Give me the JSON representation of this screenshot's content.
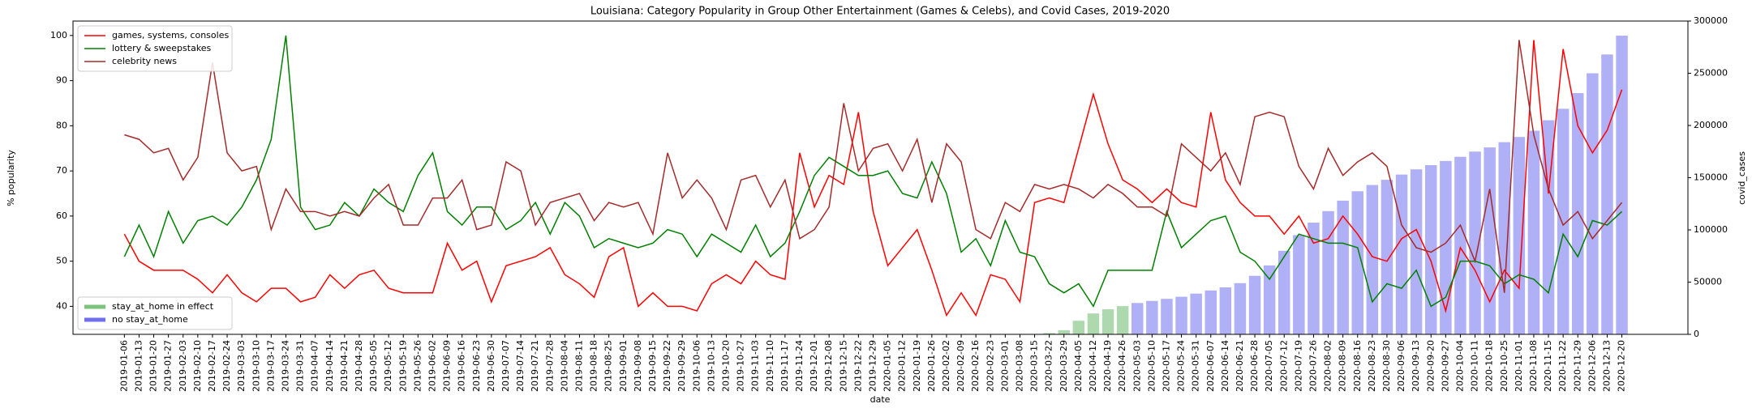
{
  "chart_data": {
    "type": "line",
    "title": "Louisiana: Category Popularity in Group Other Entertainment (Games & Celebs), and Covid Cases, 2019-2020",
    "x_label": "date",
    "y_label": "% popularity",
    "y2_label": "covid_cases",
    "categories": [
      "2019-01-06",
      "2019-01-13",
      "2019-01-20",
      "2019-01-27",
      "2019-02-03",
      "2019-02-10",
      "2019-02-17",
      "2019-02-24",
      "2019-03-03",
      "2019-03-10",
      "2019-03-17",
      "2019-03-24",
      "2019-03-31",
      "2019-04-07",
      "2019-04-14",
      "2019-04-21",
      "2019-04-28",
      "2019-05-05",
      "2019-05-12",
      "2019-05-19",
      "2019-05-26",
      "2019-06-02",
      "2019-06-09",
      "2019-06-16",
      "2019-06-23",
      "2019-06-30",
      "2019-07-07",
      "2019-07-14",
      "2019-07-21",
      "2019-07-28",
      "2019-08-04",
      "2019-08-11",
      "2019-08-18",
      "2019-08-25",
      "2019-09-01",
      "2019-09-08",
      "2019-09-15",
      "2019-09-22",
      "2019-09-29",
      "2019-10-06",
      "2019-10-13",
      "2019-10-20",
      "2019-10-27",
      "2019-11-03",
      "2019-11-10",
      "2019-11-17",
      "2019-11-24",
      "2019-12-01",
      "2019-12-08",
      "2019-12-15",
      "2019-12-22",
      "2019-12-29",
      "2020-01-05",
      "2020-01-12",
      "2020-01-19",
      "2020-01-26",
      "2020-02-02",
      "2020-02-09",
      "2020-02-16",
      "2020-02-23",
      "2020-03-01",
      "2020-03-08",
      "2020-03-15",
      "2020-03-22",
      "2020-03-29",
      "2020-04-05",
      "2020-04-12",
      "2020-04-19",
      "2020-04-26",
      "2020-05-03",
      "2020-05-10",
      "2020-05-17",
      "2020-05-24",
      "2020-05-31",
      "2020-06-07",
      "2020-06-14",
      "2020-06-21",
      "2020-06-28",
      "2020-07-05",
      "2020-07-12",
      "2020-07-19",
      "2020-07-26",
      "2020-08-02",
      "2020-08-09",
      "2020-08-16",
      "2020-08-23",
      "2020-08-30",
      "2020-09-06",
      "2020-09-13",
      "2020-09-20",
      "2020-09-27",
      "2020-10-04",
      "2020-10-11",
      "2020-10-18",
      "2020-10-25",
      "2020-11-01",
      "2020-11-08",
      "2020-11-15",
      "2020-11-22",
      "2020-11-29",
      "2020-12-06",
      "2020-12-13",
      "2020-12-20"
    ],
    "series": [
      {
        "name": "games, systems, consoles",
        "type": "line",
        "color": "#ff0000",
        "values": [
          56,
          50,
          48,
          48,
          48,
          46,
          43,
          47,
          43,
          41,
          44,
          44,
          41,
          42,
          47,
          44,
          47,
          48,
          44,
          43,
          43,
          43,
          54,
          48,
          50,
          41,
          49,
          50,
          51,
          53,
          47,
          45,
          42,
          51,
          53,
          40,
          43,
          40,
          40,
          39,
          45,
          47,
          45,
          50,
          47,
          46,
          74,
          62,
          69,
          67,
          83,
          61,
          49,
          53,
          57,
          48,
          38,
          43,
          38,
          47,
          46,
          41,
          63,
          64,
          63,
          75,
          87,
          76,
          68,
          66,
          63,
          66,
          63,
          62,
          83,
          68,
          63,
          60,
          60,
          56,
          60,
          54,
          55,
          60,
          56,
          51,
          50,
          55,
          57,
          50,
          39,
          53,
          48,
          41,
          48,
          44,
          99,
          65,
          97,
          80,
          74,
          79,
          88
        ]
      },
      {
        "name": "lottery & sweepstakes",
        "type": "line",
        "color": "#008000",
        "values": [
          51,
          58,
          51,
          61,
          54,
          59,
          60,
          58,
          62,
          68,
          77,
          100,
          62,
          57,
          58,
          63,
          60,
          66,
          63,
          61,
          69,
          74,
          61,
          58,
          62,
          62,
          57,
          59,
          63,
          56,
          63,
          60,
          53,
          55,
          54,
          53,
          54,
          57,
          56,
          51,
          56,
          54,
          52,
          58,
          51,
          54,
          61,
          69,
          73,
          71,
          69,
          69,
          70,
          65,
          64,
          72,
          65,
          52,
          55,
          49,
          59,
          52,
          51,
          45,
          43,
          45,
          40,
          48,
          48,
          48,
          48,
          61,
          53,
          56,
          59,
          60,
          52,
          50,
          46,
          51,
          56,
          55,
          54,
          54,
          53,
          41,
          45,
          44,
          48,
          40,
          42,
          50,
          50,
          49,
          45,
          47,
          46,
          43,
          56,
          51,
          59,
          58,
          61
        ]
      },
      {
        "name": "celebrity news",
        "type": "line",
        "color": "#a52a2a",
        "values": [
          78,
          77,
          74,
          75,
          68,
          73,
          94,
          74,
          70,
          71,
          57,
          66,
          61,
          61,
          60,
          61,
          60,
          64,
          67,
          58,
          58,
          64,
          64,
          68,
          57,
          58,
          72,
          70,
          58,
          63,
          64,
          65,
          59,
          63,
          62,
          63,
          56,
          74,
          64,
          68,
          64,
          57,
          68,
          69,
          62,
          68,
          55,
          57,
          62,
          85,
          70,
          75,
          76,
          70,
          77,
          63,
          76,
          72,
          57,
          55,
          63,
          61,
          67,
          66,
          67,
          66,
          64,
          67,
          65,
          62,
          62,
          60,
          76,
          73,
          70,
          74,
          67,
          82,
          83,
          82,
          71,
          66,
          75,
          69,
          72,
          74,
          71,
          58,
          53,
          52,
          54,
          58,
          50,
          66,
          43,
          99,
          78,
          66,
          58,
          61,
          55,
          59,
          63
        ]
      },
      {
        "name": "stay_at_home in effect",
        "type": "bar",
        "axis": "y2",
        "color": "#aed8ae",
        "legend_color": "#7cc47c",
        "values": [
          null,
          null,
          null,
          null,
          null,
          null,
          null,
          null,
          null,
          null,
          null,
          null,
          null,
          null,
          null,
          null,
          null,
          null,
          null,
          null,
          null,
          null,
          null,
          null,
          null,
          null,
          null,
          null,
          null,
          null,
          null,
          null,
          null,
          null,
          null,
          null,
          null,
          null,
          null,
          null,
          null,
          null,
          null,
          null,
          null,
          null,
          null,
          null,
          null,
          null,
          null,
          null,
          null,
          null,
          null,
          null,
          null,
          null,
          null,
          null,
          null,
          null,
          null,
          1200,
          4000,
          13000,
          20000,
          24000,
          27000,
          null,
          null,
          null,
          null,
          null,
          null,
          null,
          null,
          null,
          null,
          null,
          null,
          null,
          null,
          null,
          null,
          null,
          null,
          null,
          null,
          null,
          null,
          null,
          null,
          null,
          null,
          null,
          null,
          null,
          null,
          null,
          null,
          null,
          null
        ]
      },
      {
        "name": "no stay_at_home",
        "type": "bar",
        "axis": "y2",
        "color": "#b0b0f6",
        "legend_color": "#7070ee",
        "values": [
          null,
          null,
          null,
          null,
          null,
          null,
          null,
          null,
          null,
          null,
          null,
          null,
          null,
          null,
          null,
          null,
          null,
          null,
          null,
          null,
          null,
          null,
          null,
          null,
          null,
          null,
          null,
          null,
          null,
          null,
          null,
          null,
          null,
          null,
          null,
          null,
          null,
          null,
          null,
          null,
          null,
          null,
          null,
          null,
          null,
          null,
          null,
          null,
          null,
          null,
          null,
          null,
          null,
          null,
          null,
          null,
          null,
          null,
          null,
          null,
          null,
          null,
          null,
          null,
          null,
          null,
          null,
          null,
          null,
          30000,
          32000,
          34000,
          36000,
          39000,
          42000,
          45000,
          49000,
          56000,
          66000,
          80000,
          95000,
          107000,
          118000,
          128000,
          137000,
          143000,
          148000,
          153000,
          158000,
          162000,
          166000,
          170000,
          175000,
          179000,
          184000,
          189000,
          195000,
          205000,
          216000,
          231000,
          250000,
          268000,
          286000
        ]
      }
    ],
    "ylim": [
      33.8,
      103.2
    ],
    "yticks": [
      40,
      50,
      60,
      70,
      80,
      90,
      100
    ],
    "y2lim": [
      0,
      300000
    ],
    "y2ticks": [
      0,
      50000,
      100000,
      150000,
      200000,
      250000,
      300000
    ],
    "legend": "upper left",
    "bar_legend": "lower left"
  }
}
